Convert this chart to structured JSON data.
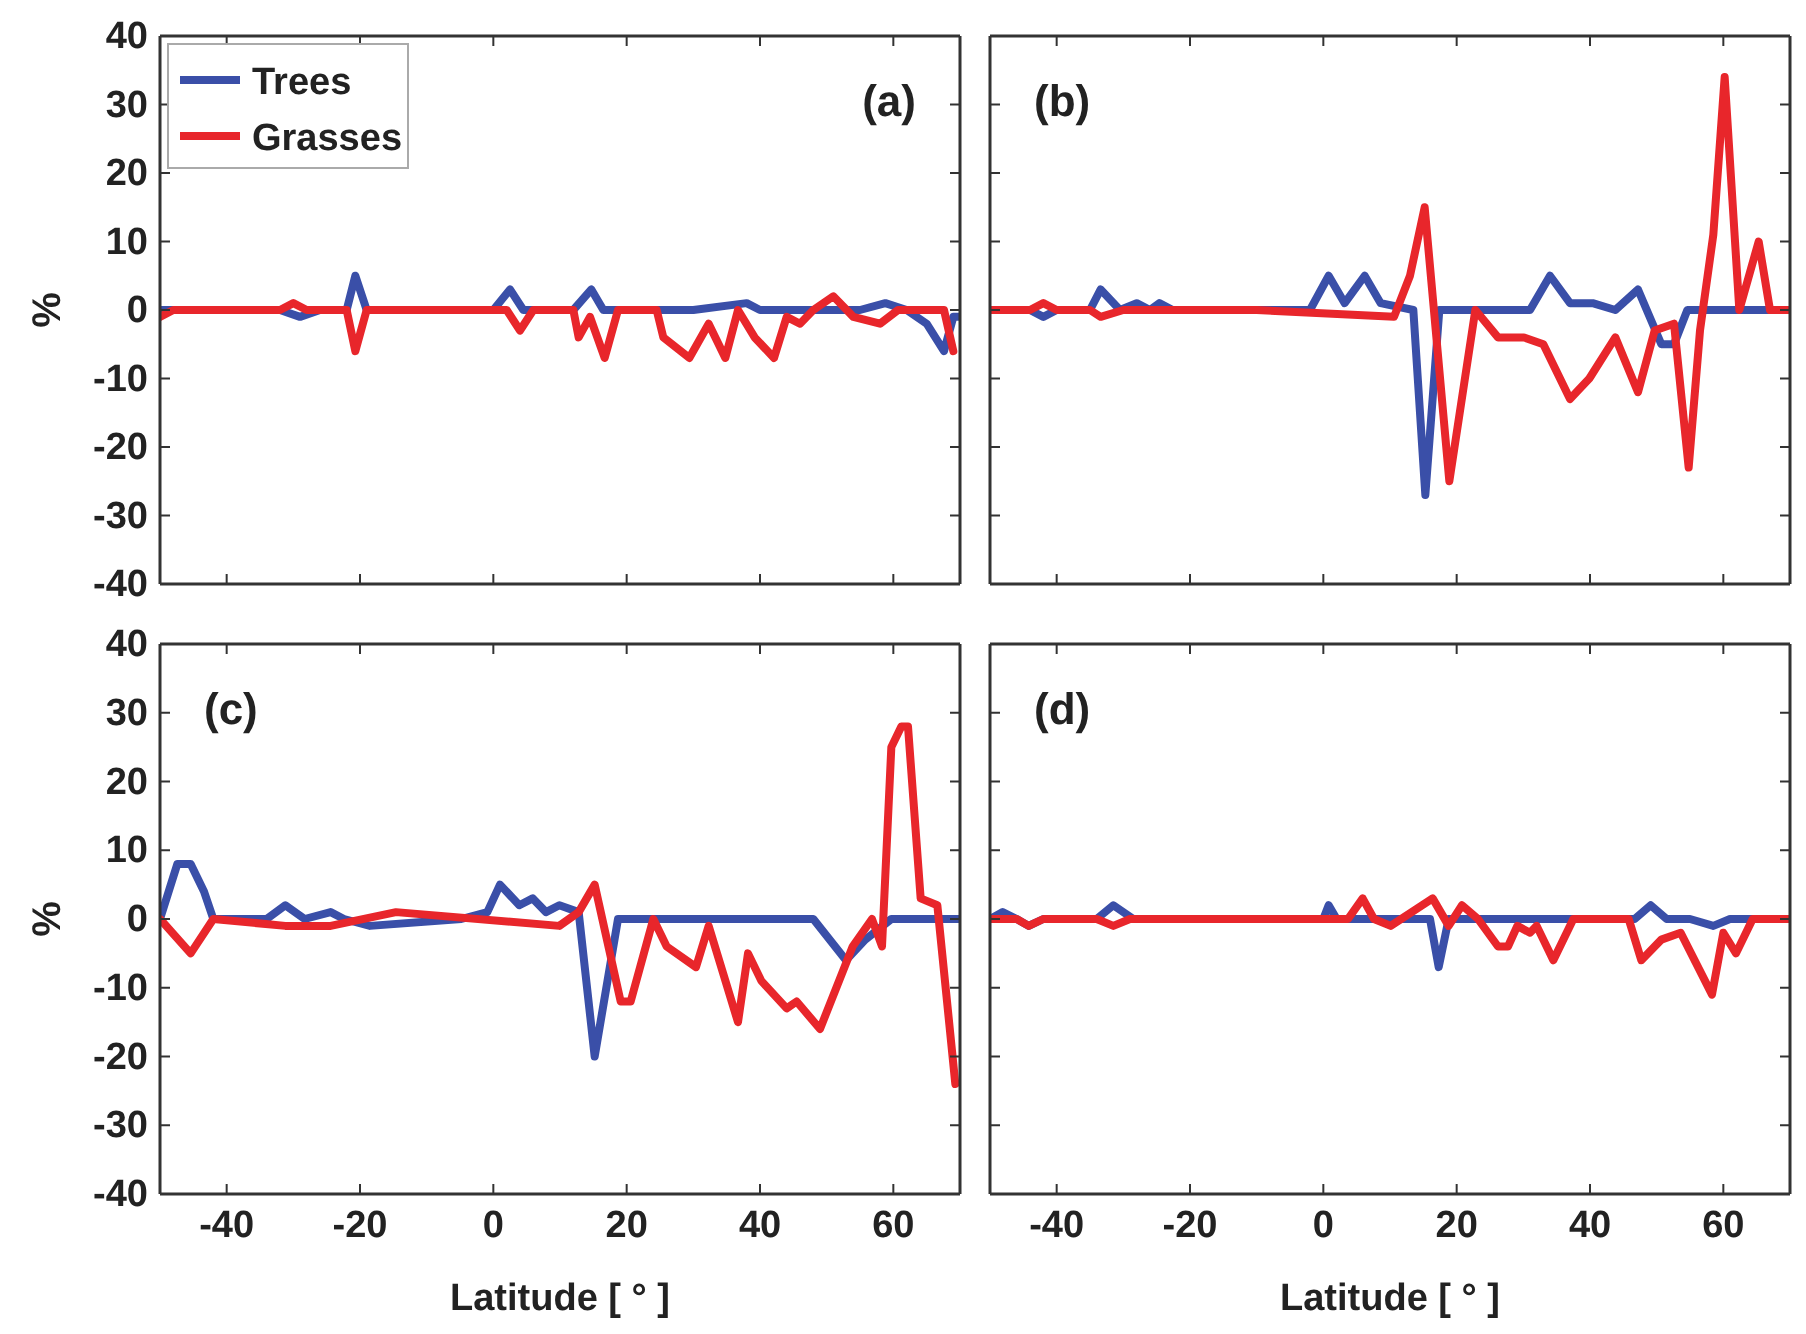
{
  "chart_data": [
    {
      "type": "line",
      "title": "(a)",
      "ylabel": "%",
      "xlim": [
        -50,
        70
      ],
      "ylim": [
        -40,
        40
      ],
      "xticks": [
        -40,
        -20,
        0,
        20,
        40,
        60
      ],
      "yticks": [
        -40,
        -30,
        -20,
        -10,
        0,
        10,
        20,
        30,
        40
      ],
      "tick_labels": "y",
      "legend": "top left",
      "grid": false,
      "series": [
        {
          "name": "Trees",
          "color": "#3a4fa8",
          "x": [
            -50,
            -48,
            -32,
            -29,
            -26,
            -22,
            -20.7,
            -19,
            -5,
            0,
            2.5,
            4.5,
            12,
            14.7,
            16.5,
            30,
            38,
            40,
            55,
            58.8,
            62,
            65,
            67.6,
            69,
            70
          ],
          "values": [
            0,
            0,
            0,
            -1,
            0,
            0,
            5,
            0,
            0,
            0,
            3,
            0,
            0,
            3,
            0,
            0,
            1,
            0,
            0,
            1,
            0,
            -2,
            -6,
            -1,
            -1
          ]
        },
        {
          "name": "Grasses",
          "color": "#e8262b",
          "x": [
            -50,
            -48,
            -32,
            -30,
            -28,
            -22,
            -20.7,
            -19,
            2,
            4,
            6,
            12,
            12.8,
            14.5,
            16.7,
            18.7,
            24.5,
            25.5,
            29.4,
            32.3,
            34.8,
            36.7,
            39.2,
            42.1,
            44,
            46,
            48,
            51,
            54,
            58,
            60.7,
            67.6,
            69
          ],
          "values": [
            -1,
            0,
            0,
            1,
            0,
            0,
            -6,
            0,
            0,
            -3,
            0,
            0,
            -4,
            -1,
            -7,
            0,
            0,
            -4,
            -7,
            -2,
            -7,
            0,
            -4,
            -7,
            -1,
            -2,
            0,
            2,
            -1,
            -2,
            0,
            0,
            -6
          ]
        }
      ]
    },
    {
      "type": "line",
      "title": "(b)",
      "xlim": [
        -50,
        70
      ],
      "ylim": [
        -40,
        40
      ],
      "xticks": [
        -40,
        -20,
        0,
        20,
        40,
        60
      ],
      "yticks": [
        -40,
        -30,
        -20,
        -10,
        0,
        10,
        20,
        30,
        40
      ],
      "tick_labels": false,
      "grid": false,
      "series": [
        {
          "color": "#3a4fa8",
          "x": [
            -50,
            -44,
            -42,
            -40,
            -35,
            -33.4,
            -30.5,
            -28,
            -26,
            -24.6,
            -22.6,
            -5,
            -2,
            0.8,
            3.2,
            6.2,
            8.6,
            13.5,
            15.3,
            17.4,
            31,
            34,
            37,
            40.4,
            43.8,
            47.2,
            50.7,
            52.6,
            54.6,
            70
          ],
          "values": [
            0,
            0,
            -1,
            0,
            0,
            3,
            0,
            1,
            0,
            1,
            0,
            0,
            0,
            5,
            1,
            5,
            1,
            0,
            -27,
            0,
            0,
            5,
            1,
            1,
            0,
            3,
            -5,
            -5,
            0,
            0
          ]
        },
        {
          "color": "#e8262b",
          "x": [
            -50,
            -44,
            -42,
            -40,
            -35,
            -33.4,
            -30,
            -10,
            10.6,
            13,
            15.2,
            18.9,
            22.8,
            26.2,
            30.1,
            33,
            37,
            39.9,
            43.8,
            47.2,
            49.7,
            52.6,
            54.8,
            56.5,
            58.5,
            60.2,
            62.4,
            65.3,
            67,
            70
          ],
          "values": [
            0,
            0,
            1,
            0,
            0,
            -1,
            0,
            0,
            -1,
            5,
            15,
            -25,
            0,
            -4,
            -4,
            -5,
            -13,
            -10,
            -4,
            -12,
            -3,
            -2,
            -23,
            -3,
            11,
            34,
            0,
            10,
            0,
            0
          ]
        }
      ]
    },
    {
      "type": "line",
      "title": "(c)",
      "xlabel": "Latitude [ ° ]",
      "ylabel": "%",
      "xlim": [
        -50,
        70
      ],
      "ylim": [
        -40,
        40
      ],
      "xticks": [
        -40,
        -20,
        0,
        20,
        40,
        60
      ],
      "yticks": [
        -40,
        -30,
        -20,
        -10,
        0,
        10,
        20,
        30,
        40
      ],
      "grid": false,
      "series": [
        {
          "color": "#3a4fa8",
          "x": [
            -50,
            -47.4,
            -45.4,
            -43.4,
            -42,
            -34,
            -31.2,
            -28.3,
            -24.4,
            -22.4,
            -18.5,
            -4.8,
            -0.9,
            1,
            3.9,
            5.9,
            7.9,
            9.9,
            12.8,
            15.2,
            18.7,
            37.2,
            48,
            52.9,
            55.8,
            59.7,
            70
          ],
          "values": [
            0,
            8,
            8,
            4,
            0,
            0,
            2,
            0,
            1,
            0,
            -1,
            0,
            1,
            5,
            2,
            3,
            1,
            2,
            1,
            -20,
            0,
            0,
            0,
            -6,
            -3,
            0,
            0
          ]
        },
        {
          "color": "#e8262b",
          "x": [
            -50,
            -45.4,
            -42,
            -31.2,
            -24.4,
            -14.6,
            9.9,
            12.8,
            15.2,
            19.1,
            20.6,
            24,
            26,
            30.4,
            32.3,
            36.7,
            38.2,
            40.2,
            44,
            45.5,
            49,
            53.9,
            56.8,
            58.3,
            59.7,
            61.2,
            62.2,
            64.1,
            66.6,
            69.3
          ],
          "values": [
            0,
            -5,
            0,
            -1,
            -1,
            1,
            -1,
            1,
            5,
            -12,
            -12,
            0,
            -4,
            -7,
            -1,
            -15,
            -5,
            -9,
            -13,
            -12,
            -16,
            -4,
            0,
            -4,
            25,
            28,
            28,
            3,
            2,
            -24
          ]
        }
      ]
    },
    {
      "type": "line",
      "title": "(d)",
      "xlabel": "Latitude [ ° ]",
      "xlim": [
        -50,
        70
      ],
      "ylim": [
        -40,
        40
      ],
      "xticks": [
        -40,
        -20,
        0,
        20,
        40,
        60
      ],
      "yticks": [
        -40,
        -30,
        -20,
        -10,
        0,
        10,
        20,
        30,
        40
      ],
      "tick_labels": "x",
      "grid": false,
      "series": [
        {
          "color": "#3a4fa8",
          "x": [
            -50,
            -48.1,
            -46,
            -44.2,
            -42,
            -34,
            -31.5,
            -28.5,
            0,
            0.8,
            2,
            16,
            17.3,
            18.8,
            46.7,
            49.1,
            51.5,
            55,
            58.5,
            61,
            70
          ],
          "values": [
            0,
            1,
            0,
            -1,
            0,
            0,
            2,
            0,
            0,
            2,
            0,
            0,
            -7,
            0,
            0,
            2,
            0,
            0,
            -1,
            0,
            0
          ]
        },
        {
          "color": "#e8262b",
          "x": [
            -50,
            -46,
            -44.2,
            -42,
            -34,
            -31.5,
            -29,
            3.7,
            5.9,
            7.6,
            10.1,
            16.4,
            18.8,
            20.8,
            23.2,
            26.2,
            27.7,
            29.1,
            31,
            32,
            34.5,
            37.5,
            45.8,
            47.7,
            50.7,
            53.6,
            58.3,
            60,
            61.9,
            64.4,
            70
          ],
          "values": [
            0,
            0,
            -1,
            0,
            0,
            -1,
            0,
            0,
            3,
            0,
            -1,
            3,
            -1,
            2,
            0,
            -4,
            -4,
            -1,
            -2,
            -1,
            -6,
            0,
            0,
            -6,
            -3,
            -2,
            -11,
            -2,
            -5,
            0,
            0
          ]
        }
      ]
    }
  ]
}
